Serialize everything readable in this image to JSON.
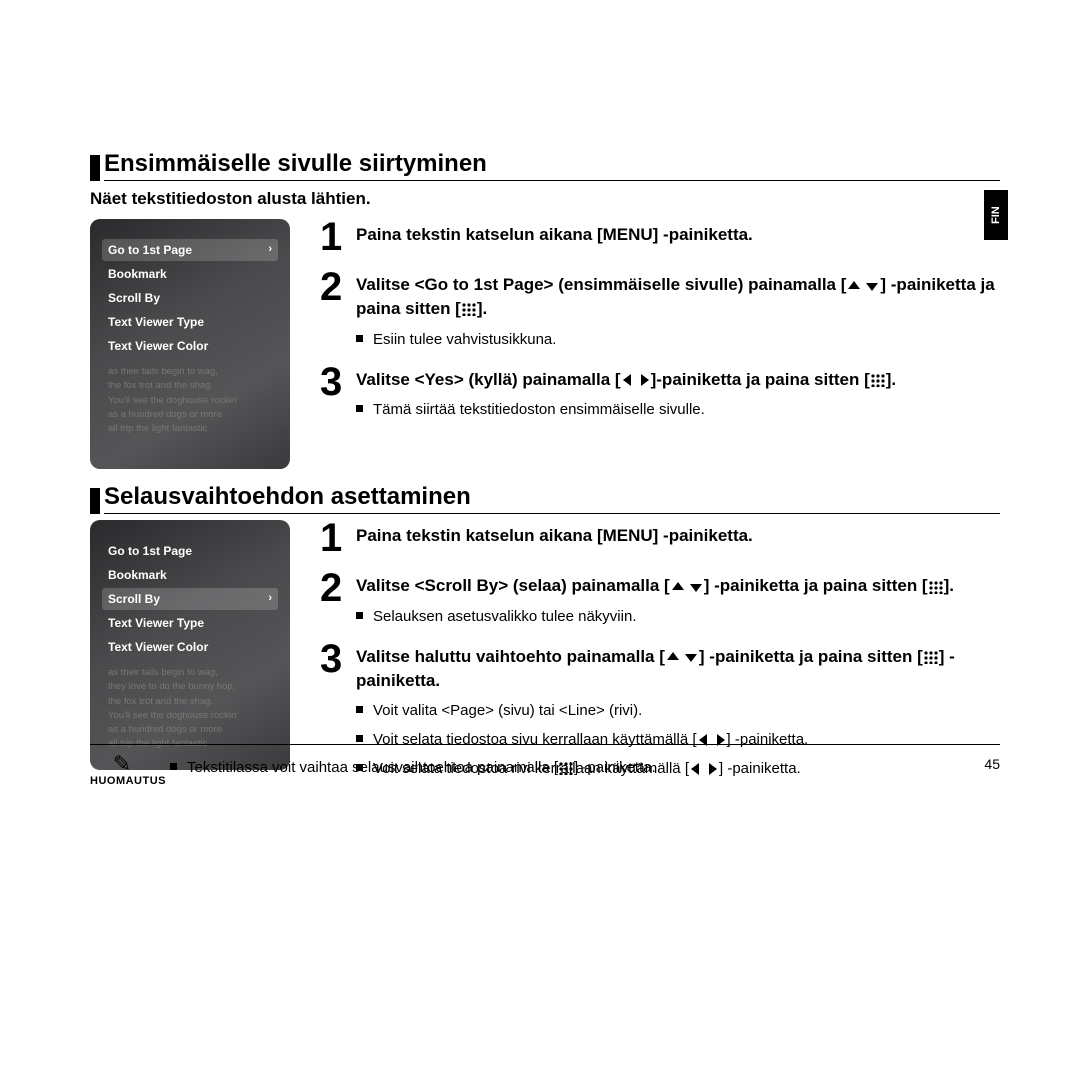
{
  "sideTab": "FIN",
  "section1": {
    "title": "Ensimmäiselle sivulle siirtyminen",
    "subtitle": "Näet tekstitiedoston alusta lähtien.",
    "menu": {
      "items": [
        "Go to 1st Page",
        "Bookmark",
        "Scroll By",
        "Text Viewer Type",
        "Text Viewer Color"
      ],
      "selectedIndex": 0,
      "bgLines": [
        "as their tails begin to wag,",
        "the fox trot and the shag.",
        "You'll see the doghouse rockin'",
        "as a hundred dogs or more",
        "all trip the light fantastic"
      ]
    },
    "steps": [
      {
        "num": "1",
        "main": "Paina tekstin katselun aikana [MENU] -painiketta.",
        "bullets": []
      },
      {
        "num": "2",
        "mainParts": [
          "Valitse <Go to 1st Page> (ensimmäiselle sivulle) painamalla [",
          "UPDOWN",
          "] -painiketta ja paina sitten [",
          "GRID",
          "]."
        ],
        "bullets": [
          "Esiin tulee vahvistusikkuna."
        ]
      },
      {
        "num": "3",
        "mainParts": [
          "Valitse <Yes> (kyllä) painamalla [",
          "LEFTRIGHT",
          "]-painiketta ja paina sitten [",
          "GRID",
          "]."
        ],
        "bullets": [
          "Tämä siirtää tekstitiedoston ensimmäiselle sivulle."
        ]
      }
    ]
  },
  "section2": {
    "title": "Selausvaihtoehdon asettaminen",
    "menu": {
      "items": [
        "Go to 1st Page",
        "Bookmark",
        "Scroll By",
        "Text Viewer Type",
        "Text Viewer Color"
      ],
      "selectedIndex": 2,
      "bgLines": [
        "as their tails begin to wag,",
        "they love to do the bunny hop,",
        "the fox trot and the shag.",
        "You'll see the doghouse rockin'",
        "as a hundred dogs or more",
        "all trip the light fantastic"
      ]
    },
    "steps": [
      {
        "num": "1",
        "main": "Paina tekstin katselun aikana [MENU] -painiketta.",
        "bullets": []
      },
      {
        "num": "2",
        "mainParts": [
          "Valitse <Scroll By> (selaa) painamalla [",
          "UPDOWN",
          "] -painiketta ja paina sitten [",
          "GRID",
          "]."
        ],
        "bullets": [
          "Selauksen asetusvalikko tulee näkyviin."
        ]
      },
      {
        "num": "3",
        "mainParts": [
          "Valitse haluttu vaihtoehto painamalla [",
          "UPDOWN",
          "] -painiketta ja paina sitten [",
          "GRID",
          "] -painiketta."
        ],
        "bullets": [
          "Voit valita <Page> (sivu) tai <Line> (rivi).",
          {
            "parts": [
              "Voit selata tiedostoa sivu kerrallaan käyttämällä [",
              "LEFTRIGHT",
              "] -painiketta."
            ]
          },
          {
            "parts": [
              "Voit selata tiedostoa rivi kerrallaan käyttämällä [",
              "LEFTRIGHT",
              "] -painiketta."
            ]
          }
        ]
      }
    ]
  },
  "footer": {
    "noteLabel": "HUOMAUTUS",
    "textParts": [
      "Tekstitilassa voit vaihtaa selausvaihtoehtoa painamalla [",
      "GRID",
      "] -painiketta."
    ],
    "pageNum": "45"
  },
  "icons": {
    "UPDOWN": "updown",
    "LEFTRIGHT": "leftright",
    "GRID": "grid"
  }
}
